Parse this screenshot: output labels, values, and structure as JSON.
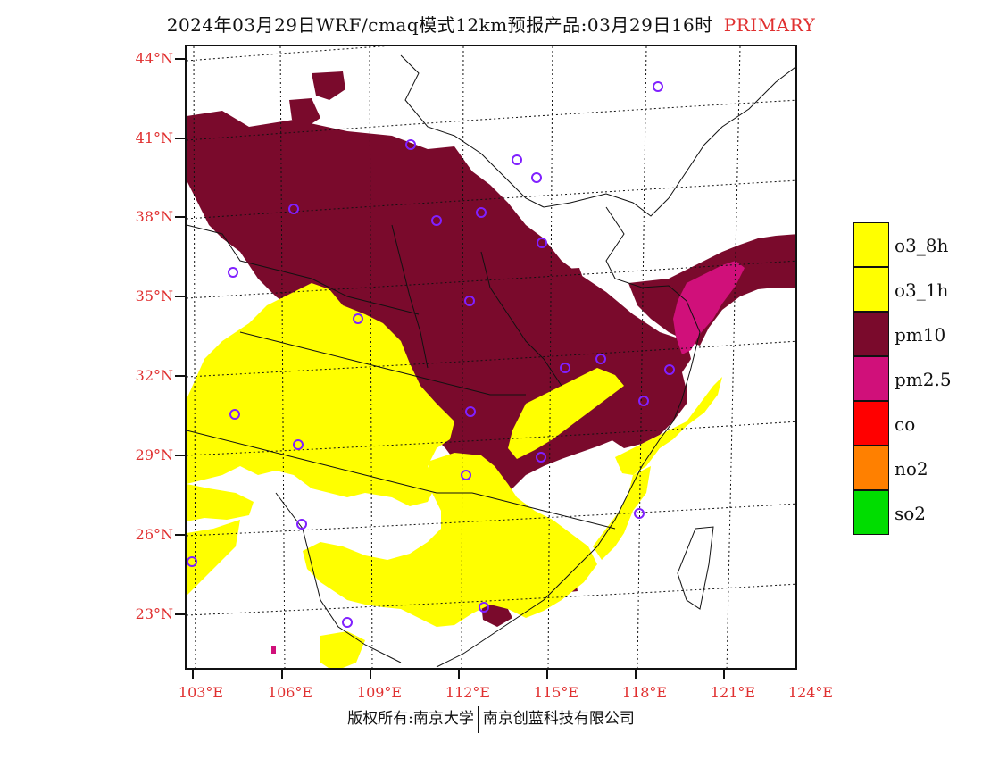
{
  "title": {
    "main": "2024年03月29日WRF/cmaq模式12km预报产品:03月29日16时",
    "tag": "PRIMARY",
    "tag_color": "#e03030"
  },
  "latitude_labels": [
    "44°N",
    "41°N",
    "38°N",
    "35°N",
    "32°N",
    "29°N",
    "26°N",
    "23°N"
  ],
  "longitude_labels": [
    "103°E",
    "106°E",
    "109°E",
    "112°E",
    "115°E",
    "118°E",
    "121°E",
    "124°E"
  ],
  "legend": [
    {
      "label": "o3_8h",
      "color": "#ffff00"
    },
    {
      "label": "o3_1h",
      "color": "#ffff00"
    },
    {
      "label": "pm10",
      "color": "#7a0a2c"
    },
    {
      "label": "pm2.5",
      "color": "#d0107a"
    },
    {
      "label": "co",
      "color": "#ff0000"
    },
    {
      "label": "no2",
      "color": "#ff8000"
    },
    {
      "label": "so2",
      "color": "#00dd00"
    }
  ],
  "footer": {
    "left": "版权所有:南京大学",
    "right": "南京创蓝科技有限公司"
  }
}
